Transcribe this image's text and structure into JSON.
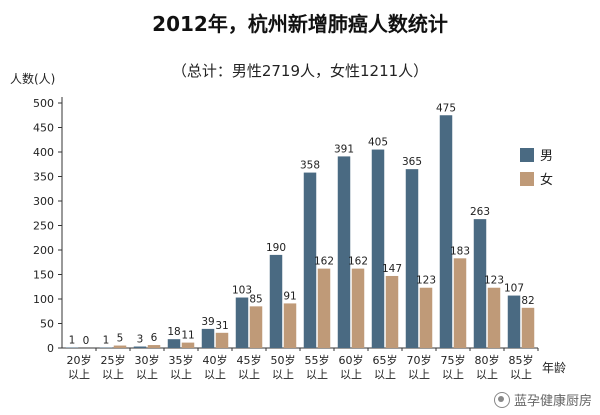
{
  "chart_data": {
    "type": "bar",
    "title": "2012年，杭州新增肺癌人数统计",
    "subtitle": "（总计：男性2719人，女性1211人）",
    "ylabel": "人数(人)",
    "xlabel": "年龄",
    "ylim": [
      0,
      500
    ],
    "yticks": [
      0,
      50,
      100,
      150,
      200,
      250,
      300,
      350,
      400,
      450,
      500
    ],
    "grid": false,
    "legend_position": "right",
    "categories": [
      [
        "20岁",
        "以上"
      ],
      [
        "25岁",
        "以上"
      ],
      [
        "30岁",
        "以上"
      ],
      [
        "35岁",
        "以上"
      ],
      [
        "40岁",
        "以上"
      ],
      [
        "45岁",
        "以上"
      ],
      [
        "50岁",
        "以上"
      ],
      [
        "55岁",
        "以上"
      ],
      [
        "60岁",
        "以上"
      ],
      [
        "65岁",
        "以上"
      ],
      [
        "70岁",
        "以上"
      ],
      [
        "75岁",
        "以上"
      ],
      [
        "80岁",
        "以上"
      ],
      [
        "85岁",
        "以上"
      ]
    ],
    "series": [
      {
        "name": "男",
        "color": "#4a6a82",
        "values": [
          1,
          1,
          3,
          18,
          39,
          103,
          190,
          358,
          391,
          405,
          365,
          475,
          263,
          107
        ]
      },
      {
        "name": "女",
        "color": "#bf9a78",
        "values": [
          0,
          5,
          6,
          11,
          31,
          85,
          91,
          162,
          162,
          147,
          123,
          183,
          123,
          82
        ]
      }
    ]
  },
  "watermark": {
    "text": "蓝孕健康厨房",
    "icon": "wechat-channel-icon"
  }
}
